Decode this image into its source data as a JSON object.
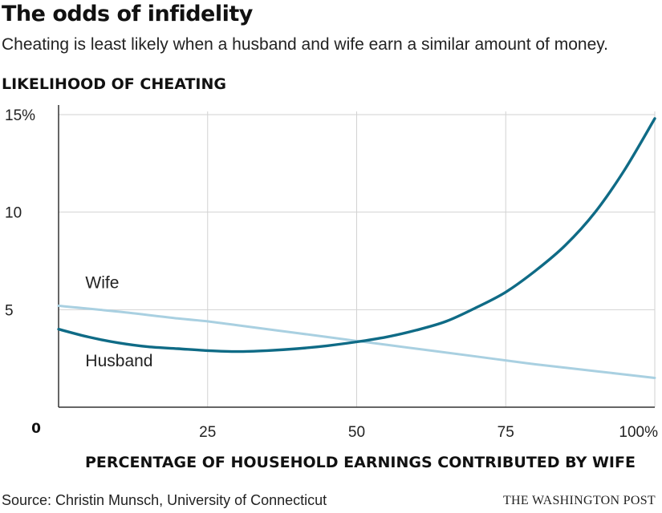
{
  "header": {
    "title": "The odds of infidelity",
    "subtitle": "Cheating is least likely when a husband and wife earn a similar amount of money."
  },
  "footer": {
    "source": "Source: Christin Munsch, University of Connecticut",
    "credit": "THE WASHINGTON POST"
  },
  "colors": {
    "husband": "#0f6b86",
    "wife": "#a9d0e1",
    "grid": "#d2d2d2",
    "axis": "#333333"
  },
  "chart_data": {
    "type": "line",
    "title": "The odds of infidelity",
    "subtitle": "Cheating is least likely when a husband and wife earn a similar amount of money.",
    "ylabel": "LIKELIHOOD OF CHEATING",
    "xlabel": "PERCENTAGE OF HOUSEHOLD EARNINGS CONTRIBUTED BY WIFE",
    "xlim": [
      0,
      100
    ],
    "ylim": [
      0,
      15
    ],
    "grid": true,
    "zero_label": "0",
    "x_ticks": [
      {
        "value": 25,
        "label": "25"
      },
      {
        "value": 50,
        "label": "50"
      },
      {
        "value": 75,
        "label": "75"
      },
      {
        "value": 100,
        "label": "100%"
      }
    ],
    "y_ticks": [
      {
        "value": 5,
        "label": "5"
      },
      {
        "value": 10,
        "label": "10"
      },
      {
        "value": 15,
        "label": "15%"
      }
    ],
    "series": [
      {
        "name": "Husband",
        "label_at": {
          "x": 4.5,
          "y": 2.1
        },
        "points": [
          [
            0,
            4.0
          ],
          [
            5,
            3.6
          ],
          [
            10,
            3.3
          ],
          [
            15,
            3.1
          ],
          [
            20,
            3.0
          ],
          [
            25,
            2.9
          ],
          [
            30,
            2.85
          ],
          [
            35,
            2.9
          ],
          [
            40,
            3.0
          ],
          [
            45,
            3.15
          ],
          [
            50,
            3.35
          ],
          [
            55,
            3.6
          ],
          [
            60,
            3.95
          ],
          [
            65,
            4.4
          ],
          [
            70,
            5.1
          ],
          [
            75,
            5.9
          ],
          [
            80,
            7.0
          ],
          [
            85,
            8.3
          ],
          [
            90,
            10.0
          ],
          [
            95,
            12.2
          ],
          [
            100,
            14.8
          ]
        ]
      },
      {
        "name": "Wife",
        "label_at": {
          "x": 4.5,
          "y": 6.1
        },
        "points": [
          [
            0,
            5.2
          ],
          [
            10,
            4.9
          ],
          [
            20,
            4.55
          ],
          [
            25,
            4.4
          ],
          [
            30,
            4.2
          ],
          [
            40,
            3.8
          ],
          [
            50,
            3.4
          ],
          [
            60,
            3.0
          ],
          [
            70,
            2.6
          ],
          [
            75,
            2.4
          ],
          [
            80,
            2.2
          ],
          [
            90,
            1.85
          ],
          [
            100,
            1.5
          ]
        ]
      }
    ]
  }
}
